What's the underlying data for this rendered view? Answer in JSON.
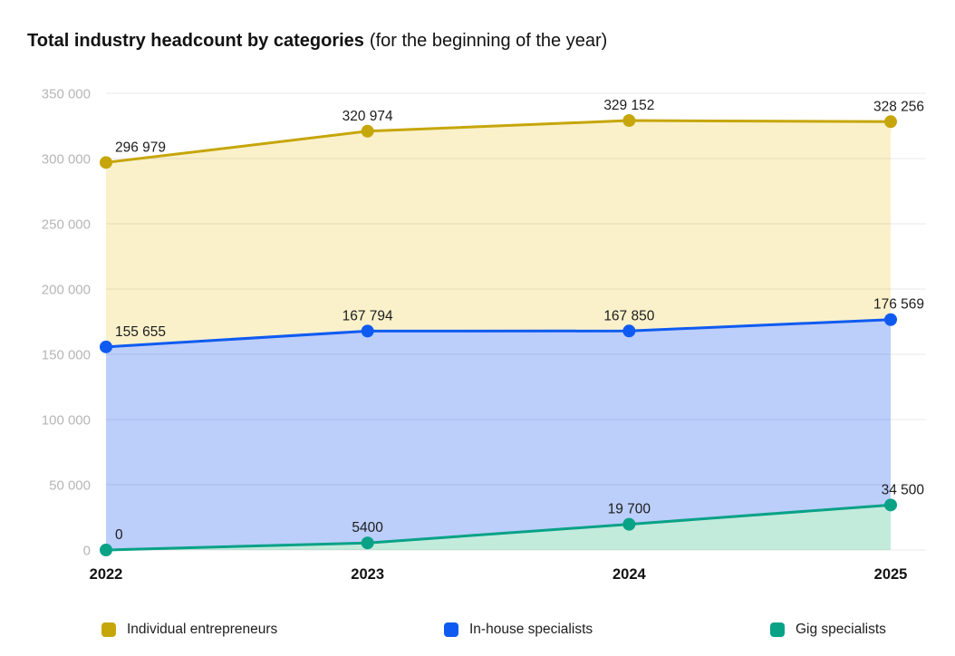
{
  "header": {
    "title_bold": "Total industry headcount by categories",
    "title_suffix": "(for the beginning of the year)"
  },
  "chart_data": {
    "type": "area",
    "title": "Total industry headcount by categories (for the beginning of the year)",
    "categories": [
      "2022",
      "2023",
      "2024",
      "2025"
    ],
    "series": [
      {
        "name": "Individual entrepreneurs",
        "color": "#c6a60a",
        "fill": "#faf1cb",
        "values": [
          296979,
          320974,
          329152,
          328256
        ],
        "labels": [
          "296 979",
          "320 974",
          "329 152",
          "328 256"
        ]
      },
      {
        "name": "In-house specialists",
        "color": "#0f5bf1",
        "fill": "#bccefa",
        "values": [
          155655,
          167794,
          167850,
          176569
        ],
        "labels": [
          "155 655",
          "167 794",
          "167 850",
          "176 569"
        ]
      },
      {
        "name": "Gig specialists",
        "color": "#09a287",
        "fill": "#c2ebdc",
        "values": [
          0,
          5400,
          19700,
          34500
        ],
        "labels": [
          "0",
          "5400",
          "19 700",
          "34 500"
        ]
      }
    ],
    "y_axis": {
      "min": 0,
      "max": 350000,
      "tick_step": 50000,
      "ticks": [
        "0",
        "50 000",
        "100 000",
        "150 000",
        "200 000",
        "250 000",
        "300 000",
        "350 000"
      ]
    },
    "xlabel": "",
    "ylabel": "",
    "grid": true,
    "legend_position": "bottom"
  }
}
